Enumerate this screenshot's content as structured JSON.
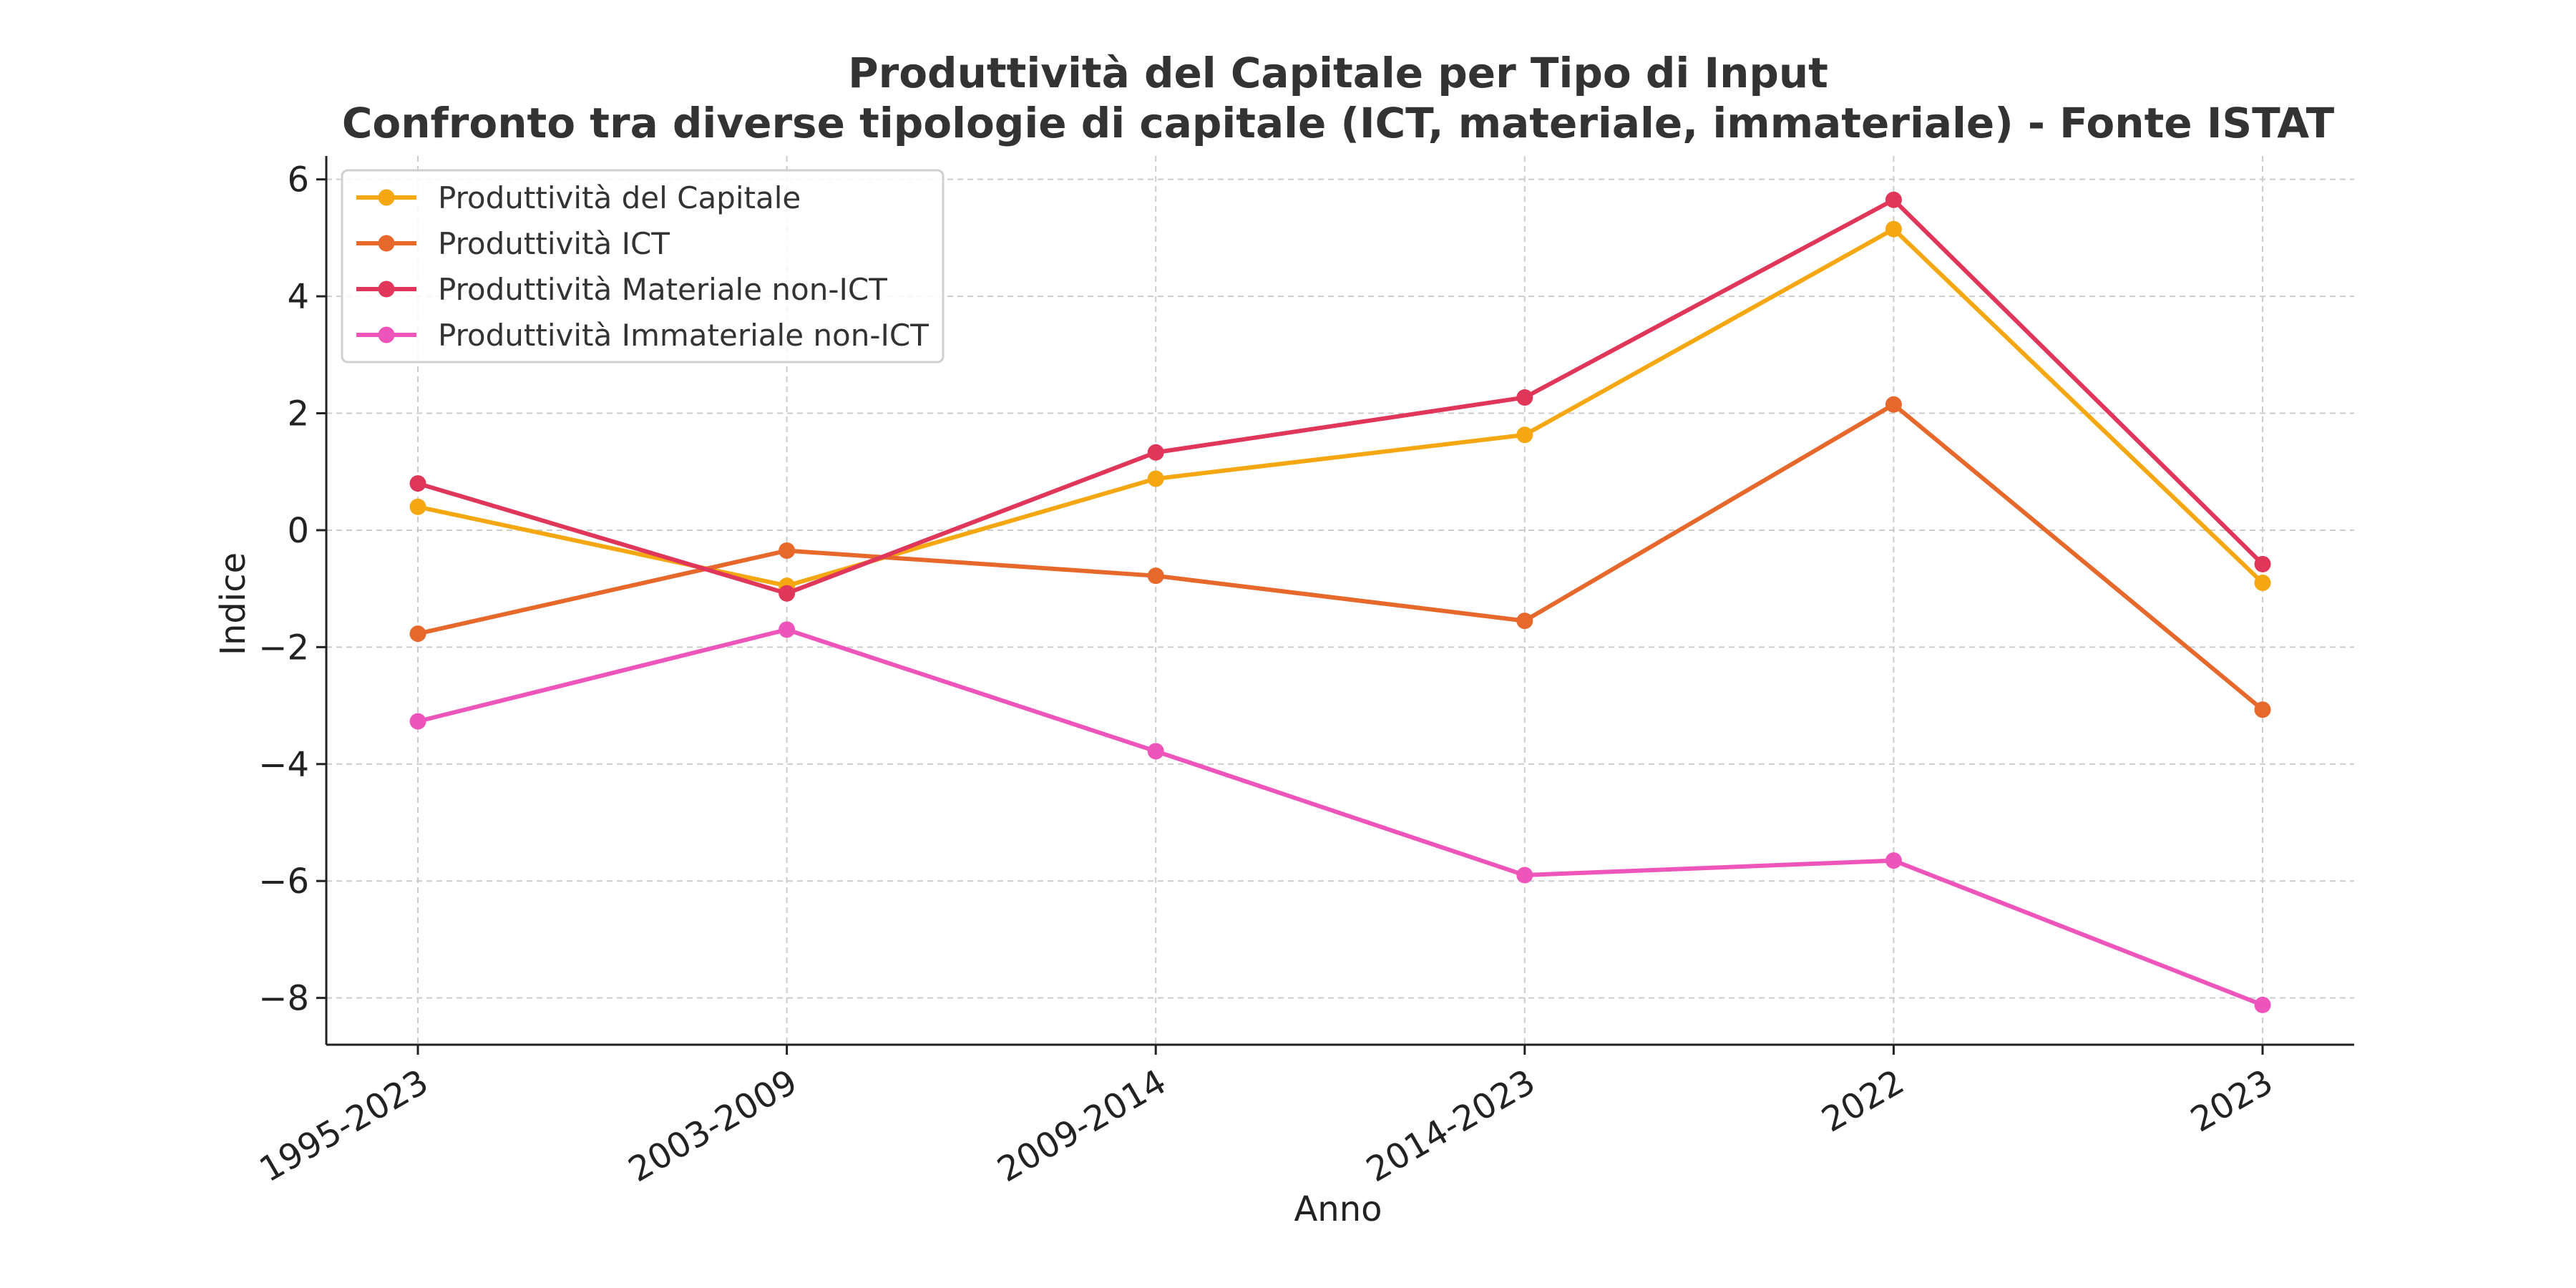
{
  "chart_data": {
    "type": "line",
    "title": "Produttività del Capitale per Tipo di Input",
    "subtitle": "Confronto tra diverse tipologie di capitale (ICT, materiale, immateriale) - Fonte ISTAT",
    "xlabel": "Anno",
    "ylabel": "Indice",
    "categories": [
      "1995-2023",
      "2003-2009",
      "2009-2014",
      "2014-2023",
      "2022",
      "2023"
    ],
    "ylim": [
      -8.8,
      6.4
    ],
    "yticks": [
      6,
      4,
      2,
      0,
      -2,
      -4,
      -6,
      -8
    ],
    "grid": true,
    "legend_position": "top-left",
    "series": [
      {
        "name": "Produttività del Capitale",
        "color": "#F5A712",
        "values": [
          0.4,
          -0.95,
          0.88,
          1.63,
          5.15,
          -0.9
        ]
      },
      {
        "name": "Produttività ICT",
        "color": "#E6682B",
        "values": [
          -1.77,
          -0.35,
          -0.78,
          -1.55,
          2.15,
          -3.07
        ]
      },
      {
        "name": "Produttività Materiale non-ICT",
        "color": "#E0365A",
        "values": [
          0.8,
          -1.08,
          1.33,
          2.27,
          5.65,
          -0.58
        ]
      },
      {
        "name": "Produttività Immateriale non-ICT",
        "color": "#EE55BB",
        "values": [
          -3.27,
          -1.7,
          -3.78,
          -5.9,
          -5.65,
          -8.12
        ]
      }
    ]
  }
}
